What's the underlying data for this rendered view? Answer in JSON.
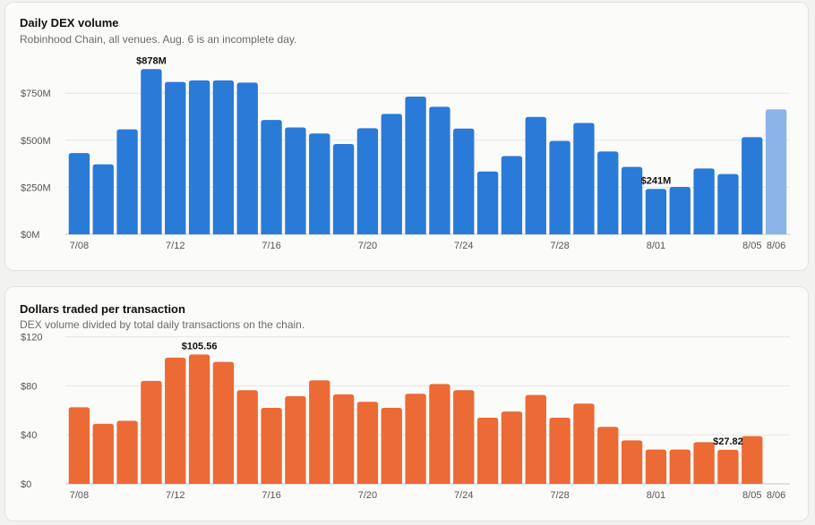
{
  "chart_data": [
    {
      "type": "bar",
      "title": "Daily DEX volume",
      "subtitle": "Robinhood Chain, all venues. Aug. 6 is an incomplete day.",
      "color": "#2a7ad8",
      "incomplete_color": "#8db4e8",
      "incomplete_index": 29,
      "categories": [
        "7/08",
        "7/09",
        "7/10",
        "7/11",
        "7/12",
        "7/13",
        "7/14",
        "7/15",
        "7/16",
        "7/17",
        "7/18",
        "7/19",
        "7/20",
        "7/21",
        "7/22",
        "7/23",
        "7/24",
        "7/25",
        "7/26",
        "7/27",
        "7/28",
        "7/29",
        "7/30",
        "7/31",
        "8/01",
        "8/02",
        "8/03",
        "8/04",
        "8/05",
        "8/06"
      ],
      "values": [
        432,
        372,
        558,
        878,
        810,
        818,
        818,
        806,
        608,
        568,
        536,
        480,
        564,
        640,
        732,
        678,
        562,
        334,
        416,
        624,
        496,
        592,
        440,
        358,
        241,
        252,
        350,
        320,
        516,
        664
      ],
      "x_tick_labels": [
        "7/08",
        "7/12",
        "7/16",
        "7/20",
        "7/24",
        "7/28",
        "8/01",
        "8/05",
        "8/06"
      ],
      "y_ticks": [
        0,
        250,
        500,
        750
      ],
      "y_tick_labels": [
        "$0M",
        "$250M",
        "$500M",
        "$750M"
      ],
      "ylim": [
        0,
        1000
      ],
      "annotations": [
        {
          "index": 3,
          "text": "$878M"
        },
        {
          "index": 24,
          "text": "$241M"
        }
      ],
      "xlabel": "",
      "ylabel": ""
    },
    {
      "type": "bar",
      "title": "Dollars traded per transaction",
      "subtitle": "DEX volume divided by total daily transactions on the chain.",
      "color": "#ec6a35",
      "categories": [
        "7/08",
        "7/09",
        "7/10",
        "7/11",
        "7/12",
        "7/13",
        "7/14",
        "7/15",
        "7/16",
        "7/17",
        "7/18",
        "7/19",
        "7/20",
        "7/21",
        "7/22",
        "7/23",
        "7/24",
        "7/25",
        "7/26",
        "7/27",
        "7/28",
        "7/29",
        "7/30",
        "7/31",
        "8/01",
        "8/02",
        "8/03",
        "8/04",
        "8/05",
        "8/06"
      ],
      "values": [
        62.5,
        49,
        51.5,
        84,
        103,
        105.56,
        99.5,
        76.5,
        62,
        71.5,
        84.5,
        73,
        67,
        62,
        73.5,
        81.5,
        76.5,
        54,
        59,
        72.5,
        54,
        65.5,
        46.5,
        35.5,
        28,
        28,
        34,
        27.82,
        39,
        null
      ],
      "x_tick_labels": [
        "7/08",
        "7/12",
        "7/16",
        "7/20",
        "7/24",
        "7/28",
        "8/01",
        "8/05",
        "8/06"
      ],
      "y_ticks": [
        0,
        40,
        80,
        120
      ],
      "y_tick_labels": [
        "$0",
        "$40",
        "$80",
        "$120"
      ],
      "ylim": [
        0,
        120
      ],
      "annotations": [
        {
          "index": 5,
          "text": "$105.56"
        },
        {
          "index": 27,
          "text": "$27.82"
        }
      ],
      "xlabel": "",
      "ylabel": ""
    }
  ]
}
